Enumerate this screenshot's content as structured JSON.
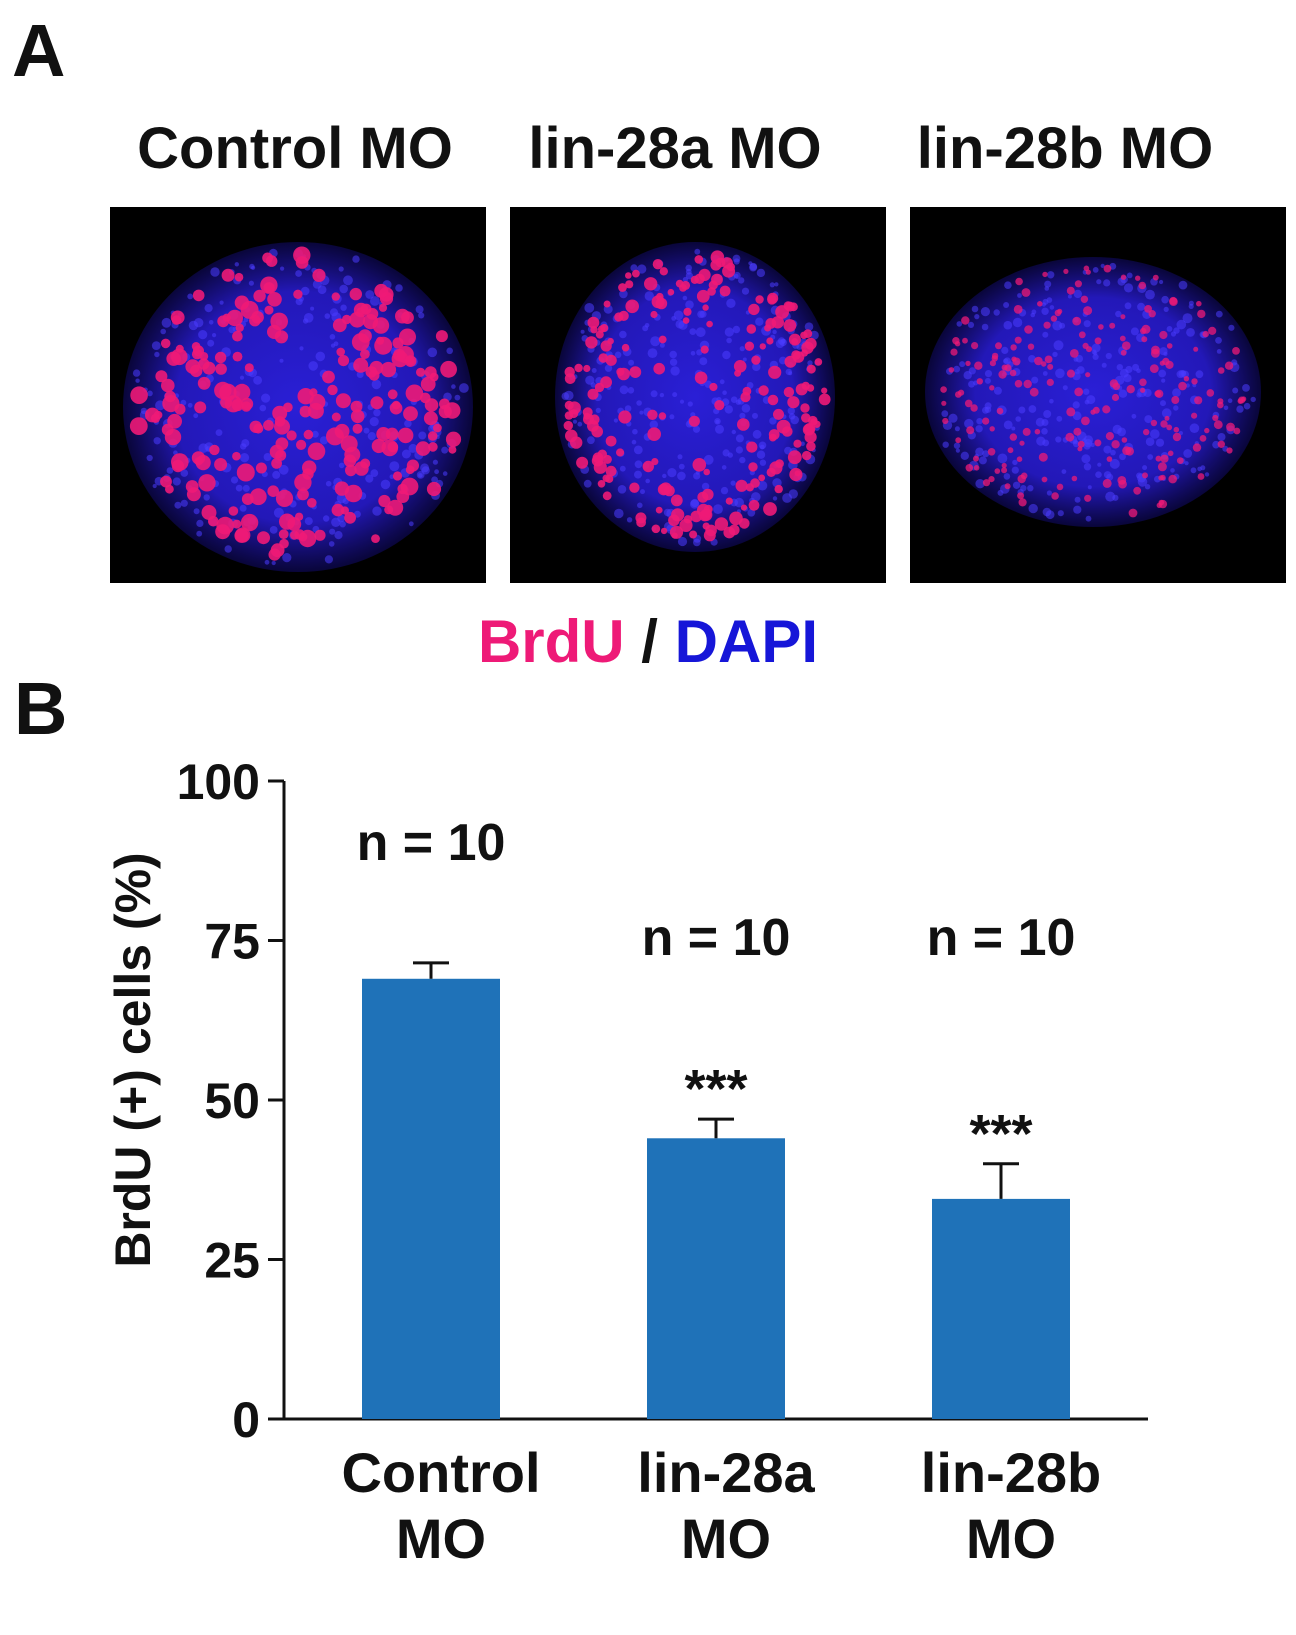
{
  "panels": {
    "a_label": "A",
    "b_label": "B"
  },
  "micrographs": {
    "titles": [
      "Control MO",
      "lin-28a MO",
      "lin-28b MO"
    ],
    "stain_legend": {
      "brdu": "BrdU",
      "separator": " / ",
      "dapi": "DAPI",
      "brdu_color": "#ee1a77",
      "dapi_color": "#1616d8"
    }
  },
  "chart_data": {
    "type": "bar",
    "categories": [
      [
        "Control",
        "MO"
      ],
      [
        "lin-28a",
        "MO"
      ],
      [
        "lin-28b",
        "MO"
      ]
    ],
    "values": [
      69,
      44,
      34.5
    ],
    "errors": [
      2.5,
      3,
      5.5
    ],
    "n_labels": [
      "n = 10",
      "n = 10",
      "n = 10"
    ],
    "significance": [
      "",
      "***",
      "***"
    ],
    "ylabel": "BrdU (+) cells (%)",
    "xlabel": "",
    "ylim": [
      0,
      100
    ],
    "yticks": [
      0,
      25,
      50,
      75,
      100
    ],
    "bar_color": "#1f72b8",
    "grid": false
  }
}
